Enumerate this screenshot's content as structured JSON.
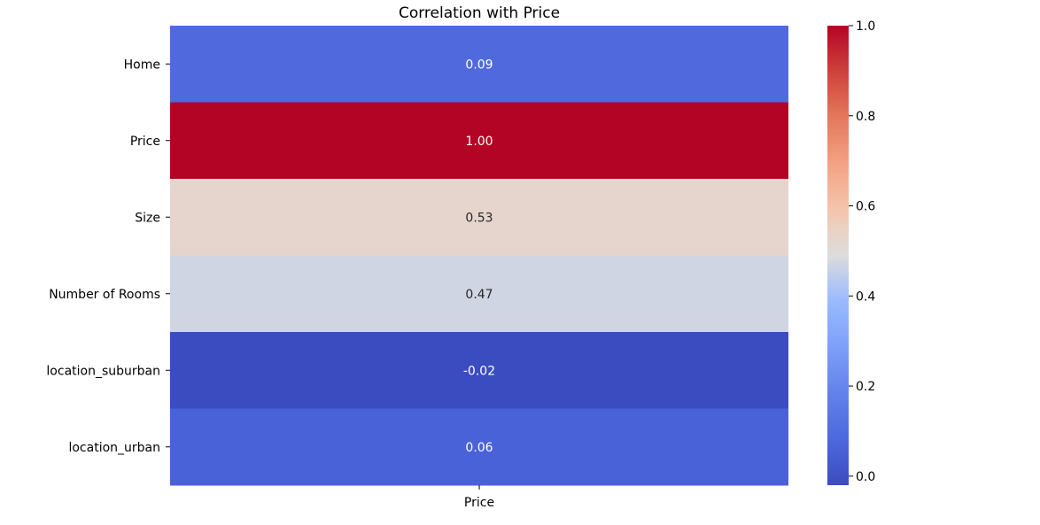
{
  "chart_data": {
    "type": "heatmap",
    "title": "Correlation with Price",
    "rows": [
      "Home",
      "Price",
      "Size",
      "Number of Rooms",
      "location_suburban",
      "location_urban"
    ],
    "columns": [
      "Price"
    ],
    "values": [
      0.09,
      1.0,
      0.53,
      0.47,
      -0.02,
      0.06
    ],
    "value_labels": [
      "0.09",
      "1.00",
      "0.53",
      "0.47",
      "-0.02",
      "0.06"
    ],
    "colormap": "coolwarm",
    "colorbar": {
      "range": [
        -0.02,
        1.0
      ],
      "ticks": [
        0.0,
        0.2,
        0.4,
        0.6,
        0.8,
        1.0
      ],
      "tick_labels": [
        "0.0",
        "0.2",
        "0.4",
        "0.6",
        "0.8",
        "1.0"
      ]
    },
    "colors": {
      "low": "#3b4cc0",
      "mid": "#dddcdc",
      "high": "#b40426"
    }
  }
}
